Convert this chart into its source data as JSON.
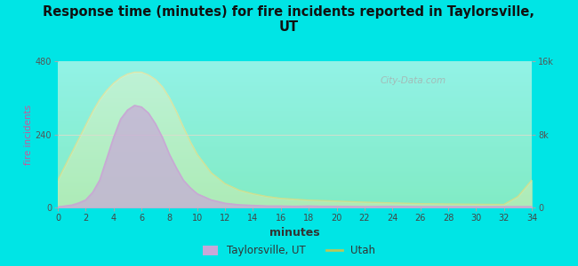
{
  "title": "Response time (minutes) for fire incidents reported in Taylorsville,\nUT",
  "xlabel": "minutes",
  "ylabel_left": "fire incidents",
  "background_color": "#00e5e5",
  "plot_bg_gradient_top": "#e8f5d0",
  "plot_bg_gradient_bottom": "#f8fff0",
  "left_ylim": [
    0,
    480
  ],
  "right_ylim": [
    0,
    16000
  ],
  "left_yticks": [
    0,
    240,
    480
  ],
  "left_yticklabels": [
    "0",
    "240",
    "480"
  ],
  "right_yticks": [
    0,
    8000,
    16000
  ],
  "right_yticklabels": [
    "0",
    "8k",
    "16k"
  ],
  "xticks": [
    0,
    2,
    4,
    6,
    8,
    10,
    12,
    14,
    16,
    18,
    20,
    22,
    24,
    26,
    28,
    30,
    32,
    34
  ],
  "taylorsville_line_color": "#c9a8d4",
  "taylorsville_fill_color": "#c8a8d8",
  "utah_line_color": "#b8c85a",
  "utah_fill_color": "#dde8a0",
  "watermark": "City-Data.com",
  "legend_labels": [
    "Taylorsville, UT",
    "Utah"
  ],
  "taylorsville_x": [
    0,
    0.5,
    1,
    1.5,
    2,
    2.5,
    3,
    3.5,
    4,
    4.5,
    5,
    5.5,
    6,
    6.5,
    7,
    7.5,
    8,
    8.5,
    9,
    9.5,
    10,
    11,
    12,
    13,
    14,
    15,
    16,
    17,
    18,
    19,
    20,
    22,
    24,
    26,
    28,
    30,
    32,
    34
  ],
  "taylorsville_y": [
    2,
    5,
    8,
    15,
    25,
    50,
    90,
    160,
    230,
    290,
    320,
    335,
    330,
    310,
    275,
    230,
    175,
    130,
    90,
    65,
    45,
    25,
    14,
    9,
    7,
    5,
    5,
    4,
    5,
    4,
    4,
    3,
    4,
    3,
    3,
    3,
    3,
    3
  ],
  "utah_x": [
    0,
    0.5,
    1,
    1.5,
    2,
    2.5,
    3,
    3.5,
    4,
    4.5,
    5,
    5.5,
    6,
    6.5,
    7,
    7.5,
    8,
    8.5,
    9,
    9.5,
    10,
    11,
    12,
    13,
    14,
    15,
    16,
    17,
    18,
    19,
    20,
    22,
    24,
    26,
    28,
    30,
    32,
    33,
    34
  ],
  "utah_y": [
    3000,
    4500,
    6000,
    7500,
    9000,
    10500,
    11800,
    12800,
    13600,
    14200,
    14600,
    14800,
    14800,
    14500,
    14000,
    13200,
    12000,
    10500,
    8800,
    7200,
    5800,
    3800,
    2600,
    1900,
    1500,
    1200,
    1000,
    900,
    800,
    750,
    700,
    580,
    500,
    420,
    380,
    350,
    330,
    1200,
    3000
  ]
}
